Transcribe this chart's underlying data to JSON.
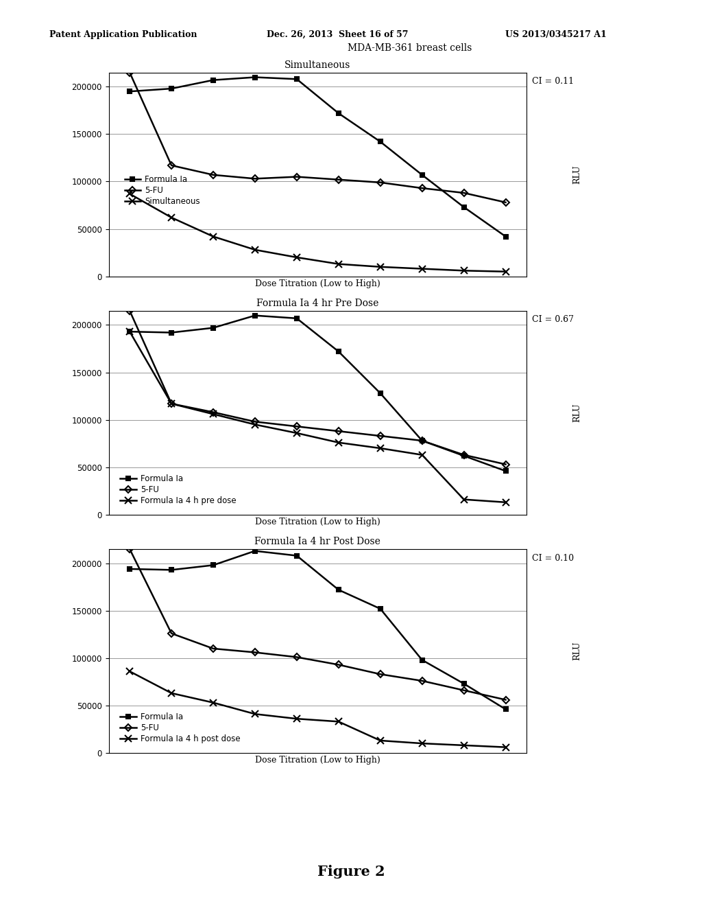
{
  "header_line1": "Patent Application Publication",
  "header_line2": "Dec. 26, 2013  Sheet 16 of 57",
  "header_line3": "US 2013/0345217 A1",
  "figure_label": "Figure 2",
  "background_color": "#ffffff",
  "x_points": [
    1,
    2,
    3,
    4,
    5,
    6,
    7,
    8,
    9,
    10
  ],
  "charts": [
    {
      "title": "Simultaneous",
      "super_title": "MDA-MB-361 breast cells",
      "ci_label": "CI = 0.11",
      "xlabel": "Dose Titration (Low to High)",
      "ylabel": "RLU",
      "ylim": [
        0,
        215000
      ],
      "yticks": [
        0,
        50000,
        100000,
        150000,
        200000
      ],
      "legend_loc": "inside_left_mid",
      "series": [
        {
          "label": "Formula Ia",
          "marker": "s",
          "marker_size": 5,
          "line_width": 1.8,
          "color": "#000000",
          "data": [
            195000,
            198000,
            207000,
            210000,
            208000,
            172000,
            142000,
            107000,
            73000,
            42000
          ]
        },
        {
          "label": "5-FU",
          "marker": "D",
          "marker_size": 5,
          "line_width": 1.8,
          "color": "#000000",
          "data": [
            215000,
            117000,
            107000,
            103000,
            105000,
            102000,
            99000,
            93000,
            88000,
            78000
          ]
        },
        {
          "label": "Simultaneous",
          "marker": "x",
          "marker_size": 7,
          "line_width": 1.8,
          "color": "#000000",
          "data": [
            87000,
            62000,
            42000,
            28000,
            20000,
            13000,
            10000,
            8000,
            6000,
            5000
          ]
        }
      ]
    },
    {
      "title": "Formula Ia 4 hr Pre Dose",
      "super_title": null,
      "ci_label": "CI = 0.67",
      "xlabel": "Dose Titration (Low to High)",
      "ylabel": "RLU",
      "ylim": [
        0,
        215000
      ],
      "yticks": [
        0,
        50000,
        100000,
        150000,
        200000
      ],
      "legend_loc": "inside_left_bottom",
      "series": [
        {
          "label": "Formula Ia",
          "marker": "s",
          "marker_size": 5,
          "line_width": 1.8,
          "color": "#000000",
          "data": [
            193000,
            192000,
            197000,
            210000,
            207000,
            172000,
            128000,
            78000,
            62000,
            46000
          ]
        },
        {
          "label": "5-FU",
          "marker": "D",
          "marker_size": 5,
          "line_width": 1.8,
          "color": "#000000",
          "data": [
            215000,
            117000,
            108000,
            98000,
            93000,
            88000,
            83000,
            78000,
            63000,
            53000
          ]
        },
        {
          "label": "Formula Ia 4 h pre dose",
          "marker": "x",
          "marker_size": 7,
          "line_width": 1.8,
          "color": "#000000",
          "data": [
            193000,
            117000,
            106000,
            95000,
            86000,
            76000,
            70000,
            63000,
            16000,
            13000
          ]
        }
      ]
    },
    {
      "title": "Formula Ia 4 hr Post Dose",
      "super_title": null,
      "ci_label": "CI = 0.10",
      "xlabel": "Dose Titration (Low to High)",
      "ylabel": "RLU",
      "ylim": [
        0,
        215000
      ],
      "yticks": [
        0,
        50000,
        100000,
        150000,
        200000
      ],
      "legend_loc": "inside_left_bottom",
      "series": [
        {
          "label": "Formula Ia",
          "marker": "s",
          "marker_size": 5,
          "line_width": 1.8,
          "color": "#000000",
          "data": [
            194000,
            193000,
            198000,
            213000,
            208000,
            172000,
            152000,
            98000,
            73000,
            46000
          ]
        },
        {
          "label": "5-FU",
          "marker": "D",
          "marker_size": 5,
          "line_width": 1.8,
          "color": "#000000",
          "data": [
            215000,
            126000,
            110000,
            106000,
            101000,
            93000,
            83000,
            76000,
            66000,
            56000
          ]
        },
        {
          "label": "Formula Ia 4 h post dose",
          "marker": "x",
          "marker_size": 7,
          "line_width": 1.8,
          "color": "#000000",
          "data": [
            86000,
            63000,
            53000,
            41000,
            36000,
            33000,
            13000,
            10000,
            8000,
            6000
          ]
        }
      ]
    }
  ]
}
